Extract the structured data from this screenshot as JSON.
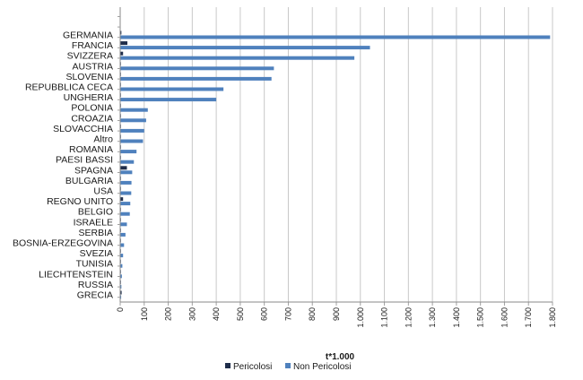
{
  "chart_data": {
    "type": "bar",
    "orientation": "horizontal",
    "title": "",
    "xlabel": "t*1.000",
    "ylabel": "",
    "xlim": [
      0,
      1800
    ],
    "xticks": [
      0,
      100,
      200,
      300,
      400,
      500,
      600,
      700,
      800,
      900,
      1000,
      1100,
      1200,
      1300,
      1400,
      1500,
      1600,
      1700,
      1800
    ],
    "xtick_labels": [
      "0",
      "100",
      "200",
      "300",
      "400",
      "500",
      "600",
      "700",
      "800",
      "900",
      "1.000",
      "1.100",
      "1.200",
      "1.300",
      "1.400",
      "1.500",
      "1.600",
      "1.700",
      "1.800"
    ],
    "grid": "vertical",
    "legend_position": "bottom",
    "categories": [
      "GERMANIA",
      "FRANCIA",
      "SVIZZERA",
      "AUSTRIA",
      "SLOVENIA",
      "REPUBBLICA CECA",
      "UNGHERIA",
      "POLONIA",
      "CROAZIA",
      "SLOVACCHIA",
      "Altro",
      "ROMANIA",
      "PAESI BASSI",
      "SPAGNA",
      "BULGARIA",
      "USA",
      "REGNO UNITO",
      "BELGIO",
      "ISRAELE",
      "SERBIA",
      "BOSNIA-ERZEGOVINA",
      "SVEZIA",
      "TUNISIA",
      "LIECHTENSTEIN",
      "RUSSIA",
      "GRECIA"
    ],
    "series": [
      {
        "name": "Pericolosi",
        "color": "#1f2d4a",
        "values": [
          5,
          30,
          12,
          2,
          2,
          1,
          1,
          1,
          1,
          1,
          1,
          1,
          2,
          28,
          1,
          1,
          12,
          1,
          1,
          1,
          1,
          1,
          1,
          1,
          1,
          6
        ]
      },
      {
        "name": "Non Pericolosi",
        "color": "#4f81bd",
        "values": [
          1790,
          1040,
          975,
          640,
          630,
          430,
          400,
          115,
          108,
          100,
          95,
          68,
          57,
          50,
          47,
          46,
          42,
          40,
          28,
          22,
          16,
          12,
          9,
          7,
          5,
          4
        ]
      }
    ]
  }
}
